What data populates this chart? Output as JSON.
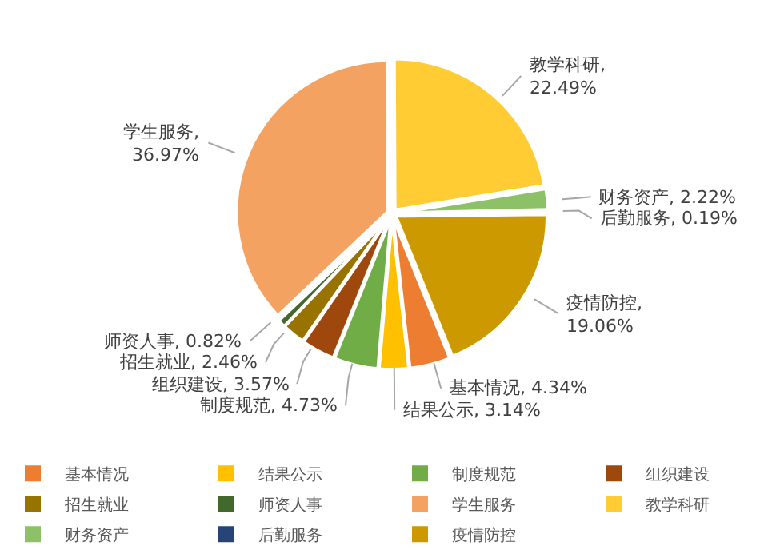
{
  "chart_data": {
    "type": "pie",
    "categories": [
      "基本情况",
      "结果公示",
      "制度规范",
      "组织建设",
      "招生就业",
      "师资人事",
      "学生服务",
      "教学科研",
      "财务资产",
      "后勤服务",
      "疫情防控"
    ],
    "values": [
      4.34,
      3.14,
      4.73,
      3.57,
      2.46,
      0.82,
      36.97,
      22.49,
      2.22,
      0.19,
      19.06
    ],
    "colors": [
      "#ed7d31",
      "#ffc000",
      "#70ad47",
      "#9e480e",
      "#997300",
      "#43682b",
      "#f4a261",
      "#ffcd33",
      "#8cc168",
      "#264478",
      "#cc9a00"
    ],
    "value_labels": [
      "基本情况, 4.34%",
      "结果公示, 3.14%",
      "制度规范, 4.73%",
      "组织建设, 3.57%",
      "招生就业, 2.46%",
      "师资人事, 0.82%",
      "学生服务, 36.97%",
      "教学科研, 22.49%",
      "财务资产, 2.22%",
      "后勤服务, 0.19%",
      "疫情防控, 19.06%"
    ],
    "legend": "bottom"
  }
}
